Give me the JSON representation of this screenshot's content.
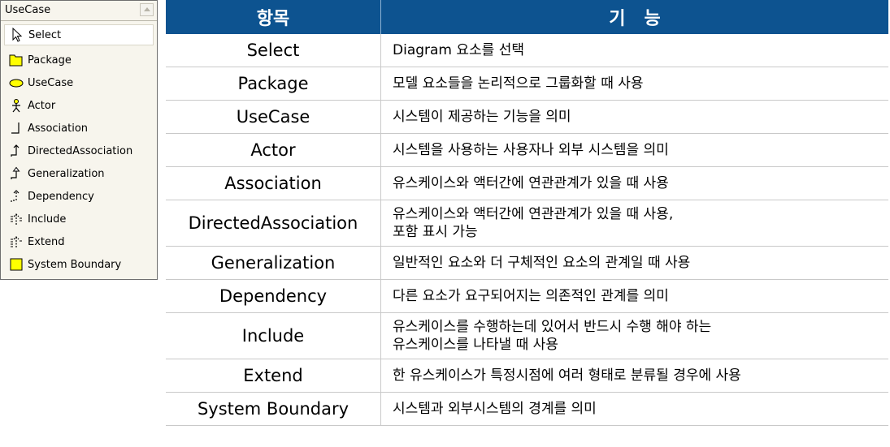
{
  "palette": {
    "title": "UseCase",
    "items": [
      {
        "label": "Select",
        "icon": "cursor-arrow-icon",
        "selected": true
      },
      {
        "label": "Package",
        "icon": "package-folder-icon"
      },
      {
        "label": "UseCase",
        "icon": "usecase-ellipse-icon"
      },
      {
        "label": "Actor",
        "icon": "actor-stickman-icon"
      },
      {
        "label": "Association",
        "icon": "association-line-icon"
      },
      {
        "label": "DirectedAssociation",
        "icon": "directed-association-icon"
      },
      {
        "label": "Generalization",
        "icon": "generalization-arrow-icon"
      },
      {
        "label": "Dependency",
        "icon": "dependency-dashed-arrow-icon"
      },
      {
        "label": "Include",
        "icon": "include-arrow-icon"
      },
      {
        "label": "Extend",
        "icon": "extend-arrow-icon"
      },
      {
        "label": "System Boundary",
        "icon": "system-boundary-box-icon"
      }
    ],
    "colors": {
      "package": "#ffff00",
      "usecase": "#ffff00",
      "boundary": "#ffff00"
    }
  },
  "table": {
    "headers": [
      "항목",
      "기   능"
    ],
    "header_bg": "#0d5390",
    "rows": [
      {
        "item": "Select",
        "desc": [
          "Diagram 요소를 선택"
        ]
      },
      {
        "item": "Package",
        "desc": [
          "모델 요소들을 논리적으로 그룹화할 때 사용"
        ]
      },
      {
        "item": "UseCase",
        "desc": [
          "시스템이 제공하는 기능을 의미"
        ]
      },
      {
        "item": "Actor",
        "desc": [
          "시스템을 사용하는 사용자나 외부 시스템을 의미"
        ]
      },
      {
        "item": "Association",
        "desc": [
          "유스케이스와 액터간에 연관관계가 있을 때 사용"
        ]
      },
      {
        "item": "DirectedAssociation",
        "desc": [
          "유스케이스와 액터간에 연관관계가 있을 때 사용,",
          "포함 표시 가능"
        ]
      },
      {
        "item": "Generalization",
        "desc": [
          "일반적인 요소와 더 구체적인 요소의 관계일 때 사용"
        ]
      },
      {
        "item": "Dependency",
        "desc": [
          "다른 요소가 요구되어지는 의존적인 관계를 의미"
        ]
      },
      {
        "item": "Include",
        "desc": [
          "유스케이스를 수행하는데 있어서 반드시 수행 해야 하는",
          "유스케이스를 나타낼 때 사용"
        ]
      },
      {
        "item": "Extend",
        "desc": [
          "한 유스케이스가 특정시점에 여러 형태로 분류될 경우에 사용"
        ]
      },
      {
        "item": "System Boundary",
        "desc": [
          "시스템과 외부시스템의 경계를 의미"
        ]
      }
    ]
  }
}
